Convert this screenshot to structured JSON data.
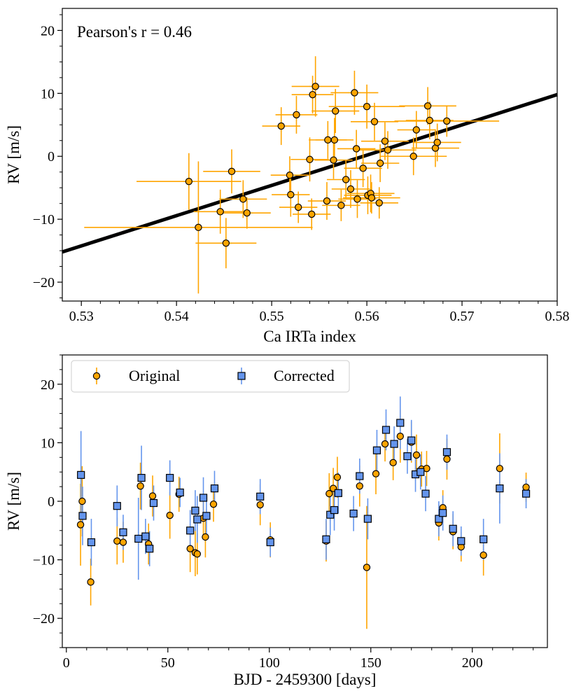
{
  "chart_data": [
    {
      "type": "scatter",
      "xlabel": "Ca IRTa index",
      "ylabel": "RV [m/s]",
      "xlim": [
        0.528,
        0.58
      ],
      "ylim": [
        -23,
        23.5
      ],
      "xticks": [
        0.53,
        0.54,
        0.55,
        0.56,
        0.57,
        0.58
      ],
      "xtick_labels": [
        "0.53",
        "0.54",
        "0.55",
        "0.56",
        "0.57",
        "0.58"
      ],
      "yticks": [
        -20,
        -10,
        0,
        10,
        20
      ],
      "ytick_labels": [
        "−20",
        "−10",
        "0",
        "10",
        "20"
      ],
      "annotation": "Pearson's r = 0.46",
      "grid": false,
      "colors": {
        "marker": "#FFA500",
        "errorbar": "#FFA500",
        "fit": "#000000"
      },
      "fit_line": {
        "x": [
          0.528,
          0.58
        ],
        "y": [
          -15.2,
          9.8
        ]
      },
      "points": [
        {
          "x": 0.5413,
          "y": -4.0,
          "xerr": 0.0055,
          "yerr": 4.5
        },
        {
          "x": 0.5423,
          "y": -11.3,
          "xerr": 0.012,
          "yerr": 10.5
        },
        {
          "x": 0.5452,
          "y": -13.8,
          "xerr": 0.0032,
          "yerr": 4.0
        },
        {
          "x": 0.5458,
          "y": -2.4,
          "xerr": 0.003,
          "yerr": 3.5
        },
        {
          "x": 0.5446,
          "y": -8.8,
          "xerr": 0.0028,
          "yerr": 3.5
        },
        {
          "x": 0.547,
          "y": -6.8,
          "xerr": 0.0025,
          "yerr": 3.0
        },
        {
          "x": 0.5474,
          "y": -9.0,
          "xerr": 0.0025,
          "yerr": 2.5
        },
        {
          "x": 0.551,
          "y": 4.8,
          "xerr": 0.002,
          "yerr": 3.0
        },
        {
          "x": 0.5519,
          "y": -3.0,
          "xerr": 0.002,
          "yerr": 3.0
        },
        {
          "x": 0.552,
          "y": -6.1,
          "xerr": 0.002,
          "yerr": 3.5
        },
        {
          "x": 0.5526,
          "y": 6.6,
          "xerr": 0.0022,
          "yerr": 3.0
        },
        {
          "x": 0.5528,
          "y": -8.1,
          "xerr": 0.002,
          "yerr": 2.5
        },
        {
          "x": 0.554,
          "y": -0.5,
          "xerr": 0.002,
          "yerr": 3.5
        },
        {
          "x": 0.5542,
          "y": -9.2,
          "xerr": 0.002,
          "yerr": 2.5
        },
        {
          "x": 0.5543,
          "y": 9.8,
          "xerr": 0.0022,
          "yerr": 3.0
        },
        {
          "x": 0.5546,
          "y": 11.1,
          "xerr": 0.0025,
          "yerr": 4.8
        },
        {
          "x": 0.5558,
          "y": -7.1,
          "xerr": 0.002,
          "yerr": 3.0
        },
        {
          "x": 0.5559,
          "y": 2.6,
          "xerr": 0.002,
          "yerr": 3.0
        },
        {
          "x": 0.5565,
          "y": -0.6,
          "xerr": 0.002,
          "yerr": 3.0
        },
        {
          "x": 0.5566,
          "y": 2.6,
          "xerr": 0.002,
          "yerr": 3.5
        },
        {
          "x": 0.5567,
          "y": 7.2,
          "xerr": 0.0025,
          "yerr": 3.5
        },
        {
          "x": 0.5573,
          "y": -7.8,
          "xerr": 0.002,
          "yerr": 2.5
        },
        {
          "x": 0.5578,
          "y": -3.7,
          "xerr": 0.002,
          "yerr": 3.0
        },
        {
          "x": 0.5583,
          "y": -5.2,
          "xerr": 0.002,
          "yerr": 3.0
        },
        {
          "x": 0.5587,
          "y": 10.1,
          "xerr": 0.0025,
          "yerr": 3.5
        },
        {
          "x": 0.5589,
          "y": 1.2,
          "xerr": 0.002,
          "yerr": 3.0
        },
        {
          "x": 0.559,
          "y": -6.8,
          "xerr": 0.002,
          "yerr": 3.0
        },
        {
          "x": 0.5596,
          "y": -1.9,
          "xerr": 0.002,
          "yerr": 3.0
        },
        {
          "x": 0.56,
          "y": 7.9,
          "xerr": 0.004,
          "yerr": 3.5
        },
        {
          "x": 0.5601,
          "y": -6.2,
          "xerr": 0.0025,
          "yerr": 3.0
        },
        {
          "x": 0.5604,
          "y": -5.9,
          "xerr": 0.0025,
          "yerr": 3.0
        },
        {
          "x": 0.5605,
          "y": -6.6,
          "xerr": 0.003,
          "yerr": 2.5
        },
        {
          "x": 0.5608,
          "y": 5.5,
          "xerr": 0.0025,
          "yerr": 3.0
        },
        {
          "x": 0.5613,
          "y": -7.4,
          "xerr": 0.002,
          "yerr": 2.5
        },
        {
          "x": 0.5614,
          "y": -1.1,
          "xerr": 0.002,
          "yerr": 3.0
        },
        {
          "x": 0.5619,
          "y": 2.4,
          "xerr": 0.0025,
          "yerr": 3.0
        },
        {
          "x": 0.5622,
          "y": 1.0,
          "xerr": 0.003,
          "yerr": 3.0
        },
        {
          "x": 0.5649,
          "y": 0.0,
          "xerr": 0.0035,
          "yerr": 3.0
        },
        {
          "x": 0.5652,
          "y": 4.2,
          "xerr": 0.002,
          "yerr": 3.0
        },
        {
          "x": 0.5664,
          "y": 8.0,
          "xerr": 0.003,
          "yerr": 3.0
        },
        {
          "x": 0.5666,
          "y": 5.7,
          "xerr": 0.0025,
          "yerr": 3.0
        },
        {
          "x": 0.5672,
          "y": 1.3,
          "xerr": 0.0025,
          "yerr": 3.0
        },
        {
          "x": 0.5674,
          "y": 2.2,
          "xerr": 0.0025,
          "yerr": 3.0
        },
        {
          "x": 0.5684,
          "y": 5.6,
          "xerr": 0.0055,
          "yerr": 2.5
        }
      ]
    },
    {
      "type": "scatter",
      "xlabel": "BJD - 2459300 [days]",
      "ylabel": "RV [m/s]",
      "xlim": [
        -2,
        237
      ],
      "ylim": [
        -25,
        25
      ],
      "xticks": [
        0,
        50,
        100,
        150,
        200
      ],
      "xtick_labels": [
        "0",
        "50",
        "100",
        "150",
        "200"
      ],
      "yticks": [
        -20,
        -10,
        0,
        10,
        20
      ],
      "ytick_labels": [
        "−20",
        "−10",
        "0",
        "10",
        "20"
      ],
      "grid": false,
      "legend_position": "top-left",
      "series": [
        {
          "name": "Original",
          "marker": "circle",
          "color": "#FFA500",
          "errcolor": "#FFA500",
          "points": [
            {
              "x": 7.0,
              "y": -4.0,
              "yerr": 7.0
            },
            {
              "x": 7.8,
              "y": 0.0,
              "yerr": 6.0
            },
            {
              "x": 12.0,
              "y": -13.8,
              "yerr": 4.0
            },
            {
              "x": 25.0,
              "y": -6.8,
              "yerr": 4.0
            },
            {
              "x": 28.0,
              "y": -7.0,
              "yerr": 3.5
            },
            {
              "x": 36.5,
              "y": 2.6,
              "yerr": 4.0
            },
            {
              "x": 40.5,
              "y": -7.3,
              "yerr": 3.5
            },
            {
              "x": 42.5,
              "y": 0.9,
              "yerr": 3.5
            },
            {
              "x": 51.0,
              "y": -2.4,
              "yerr": 4.0
            },
            {
              "x": 55.5,
              "y": 1.2,
              "yerr": 3.0
            },
            {
              "x": 61.0,
              "y": -8.1,
              "yerr": 4.0
            },
            {
              "x": 63.5,
              "y": -8.8,
              "yerr": 4.0
            },
            {
              "x": 64.5,
              "y": -9.0,
              "yerr": 3.5
            },
            {
              "x": 67.5,
              "y": -2.9,
              "yerr": 3.5
            },
            {
              "x": 68.5,
              "y": -6.1,
              "yerr": 3.5
            },
            {
              "x": 72.5,
              "y": -0.5,
              "yerr": 3.0
            },
            {
              "x": 95.5,
              "y": -0.6,
              "yerr": 3.5
            },
            {
              "x": 100.5,
              "y": -6.6,
              "yerr": 3.0
            },
            {
              "x": 128.0,
              "y": -6.8,
              "yerr": 3.5
            },
            {
              "x": 129.5,
              "y": 1.3,
              "yerr": 3.5
            },
            {
              "x": 131.5,
              "y": 2.2,
              "yerr": 3.5
            },
            {
              "x": 133.5,
              "y": 4.1,
              "yerr": 3.5
            },
            {
              "x": 144.5,
              "y": 2.6,
              "yerr": 3.5
            },
            {
              "x": 148.0,
              "y": -11.3,
              "yerr": 10.5
            },
            {
              "x": 152.5,
              "y": 4.7,
              "yerr": 3.5
            },
            {
              "x": 157.0,
              "y": 9.8,
              "yerr": 3.0
            },
            {
              "x": 161.0,
              "y": 6.6,
              "yerr": 3.0
            },
            {
              "x": 164.5,
              "y": 11.1,
              "yerr": 4.5
            },
            {
              "x": 170.0,
              "y": 10.1,
              "yerr": 3.5
            },
            {
              "x": 172.5,
              "y": 7.9,
              "yerr": 3.5
            },
            {
              "x": 175.0,
              "y": 5.5,
              "yerr": 3.0
            },
            {
              "x": 177.5,
              "y": 5.6,
              "yerr": 3.0
            },
            {
              "x": 183.5,
              "y": -3.7,
              "yerr": 3.0
            },
            {
              "x": 185.5,
              "y": -1.1,
              "yerr": 3.0
            },
            {
              "x": 187.5,
              "y": 7.2,
              "yerr": 3.5
            },
            {
              "x": 190.5,
              "y": -5.2,
              "yerr": 3.0
            },
            {
              "x": 194.5,
              "y": -7.8,
              "yerr": 2.5
            },
            {
              "x": 205.5,
              "y": -9.2,
              "yerr": 3.5
            },
            {
              "x": 213.5,
              "y": 5.6,
              "yerr": 6.0
            },
            {
              "x": 226.5,
              "y": 2.4,
              "yerr": 2.5
            }
          ]
        },
        {
          "name": "Corrected",
          "marker": "square",
          "color": "#6495ED",
          "errcolor": "#6495ED",
          "points": [
            {
              "x": 7.2,
              "y": 4.5,
              "yerr": 7.5
            },
            {
              "x": 8.0,
              "y": -2.5,
              "yerr": 5.0
            },
            {
              "x": 12.3,
              "y": -7.0,
              "yerr": 4.0
            },
            {
              "x": 25.0,
              "y": -0.8,
              "yerr": 3.5
            },
            {
              "x": 28.0,
              "y": -5.3,
              "yerr": 3.0
            },
            {
              "x": 35.5,
              "y": -6.4,
              "yerr": 7.0
            },
            {
              "x": 37.0,
              "y": 4.0,
              "yerr": 5.5
            },
            {
              "x": 39.0,
              "y": -6.0,
              "yerr": 3.0
            },
            {
              "x": 41.0,
              "y": -8.1,
              "yerr": 3.0
            },
            {
              "x": 43.0,
              "y": -0.3,
              "yerr": 3.0
            },
            {
              "x": 51.0,
              "y": 4.0,
              "yerr": 3.0
            },
            {
              "x": 56.0,
              "y": 1.5,
              "yerr": 2.5
            },
            {
              "x": 61.0,
              "y": -5.0,
              "yerr": 3.5
            },
            {
              "x": 63.5,
              "y": -1.6,
              "yerr": 3.5
            },
            {
              "x": 64.5,
              "y": -3.1,
              "yerr": 4.0
            },
            {
              "x": 67.5,
              "y": 0.6,
              "yerr": 3.5
            },
            {
              "x": 69.0,
              "y": -2.5,
              "yerr": 3.0
            },
            {
              "x": 73.0,
              "y": 2.2,
              "yerr": 3.0
            },
            {
              "x": 95.5,
              "y": 0.8,
              "yerr": 3.0
            },
            {
              "x": 100.5,
              "y": -7.0,
              "yerr": 2.5
            },
            {
              "x": 128.0,
              "y": -6.5,
              "yerr": 3.5
            },
            {
              "x": 130.0,
              "y": -2.3,
              "yerr": 3.5
            },
            {
              "x": 132.0,
              "y": -1.5,
              "yerr": 3.5
            },
            {
              "x": 134.0,
              "y": 1.4,
              "yerr": 3.5
            },
            {
              "x": 141.5,
              "y": -2.1,
              "yerr": 3.0
            },
            {
              "x": 144.5,
              "y": 4.3,
              "yerr": 3.0
            },
            {
              "x": 148.5,
              "y": -3.0,
              "yerr": 3.5
            },
            {
              "x": 153.0,
              "y": 8.7,
              "yerr": 3.5
            },
            {
              "x": 157.5,
              "y": 12.2,
              "yerr": 3.5
            },
            {
              "x": 161.5,
              "y": 9.8,
              "yerr": 3.0
            },
            {
              "x": 164.5,
              "y": 13.4,
              "yerr": 4.5
            },
            {
              "x": 168.0,
              "y": 7.7,
              "yerr": 3.0
            },
            {
              "x": 170.0,
              "y": 10.4,
              "yerr": 3.5
            },
            {
              "x": 172.0,
              "y": 4.6,
              "yerr": 3.0
            },
            {
              "x": 174.5,
              "y": 5.0,
              "yerr": 3.0
            },
            {
              "x": 177.0,
              "y": 1.3,
              "yerr": 3.0
            },
            {
              "x": 183.5,
              "y": -3.0,
              "yerr": 3.0
            },
            {
              "x": 185.5,
              "y": -2.0,
              "yerr": 3.0
            },
            {
              "x": 187.5,
              "y": 8.4,
              "yerr": 3.0
            },
            {
              "x": 190.5,
              "y": -4.7,
              "yerr": 3.0
            },
            {
              "x": 194.5,
              "y": -6.8,
              "yerr": 2.5
            },
            {
              "x": 205.5,
              "y": -6.5,
              "yerr": 3.5
            },
            {
              "x": 213.5,
              "y": 2.2,
              "yerr": 6.0
            },
            {
              "x": 226.5,
              "y": 1.3,
              "yerr": 2.5
            }
          ]
        }
      ]
    }
  ]
}
